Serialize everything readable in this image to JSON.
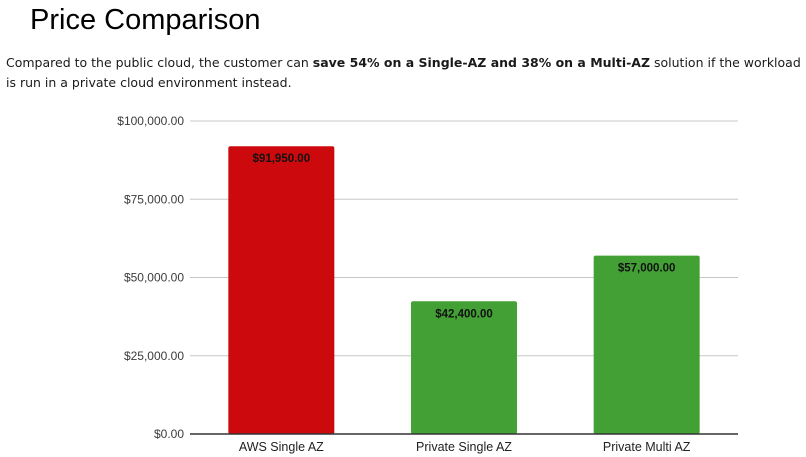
{
  "slide": {
    "title": "Price Comparison",
    "desc_pre": "Compared to the public cloud, the customer can ",
    "desc_bold": "save 54% on a Single-AZ and 38% on a Multi-AZ",
    "desc_post": " solution if the workload is run in a private cloud environment instead."
  },
  "chart_data": {
    "type": "bar",
    "categories": [
      "AWS Single AZ",
      "Private Single AZ",
      "Private Multi AZ"
    ],
    "values": [
      91950,
      42400,
      57000
    ],
    "data_labels": [
      "$91,950.00",
      "$42,400.00",
      "$57,000.00"
    ],
    "colors": [
      "#cc0a0e",
      "#43a035",
      "#43a035"
    ],
    "ylim": [
      0,
      100000
    ],
    "yticks": [
      0,
      25000,
      50000,
      75000,
      100000
    ],
    "ytick_labels": [
      "$0.00",
      "$25,000.00",
      "$50,000.00",
      "$75,000.00",
      "$100,000.00"
    ],
    "grid": true,
    "title": "",
    "xlabel": "",
    "ylabel": ""
  }
}
